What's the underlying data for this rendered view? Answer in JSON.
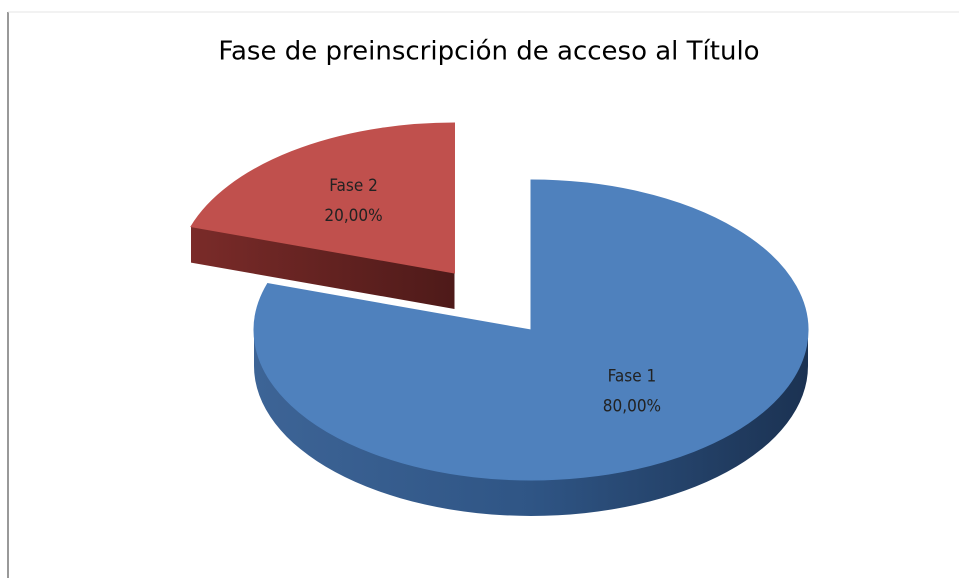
{
  "chart_data": {
    "type": "pie3d",
    "title": "Fase de preinscripción de acceso al Título",
    "categories": [
      "Fase 1",
      "Fase 2"
    ],
    "values": [
      80,
      20
    ],
    "value_labels": [
      "80,00%",
      "20,00%"
    ],
    "colors": [
      "#4f81bd",
      "#c0504d"
    ],
    "explode": [
      false,
      true
    ]
  }
}
